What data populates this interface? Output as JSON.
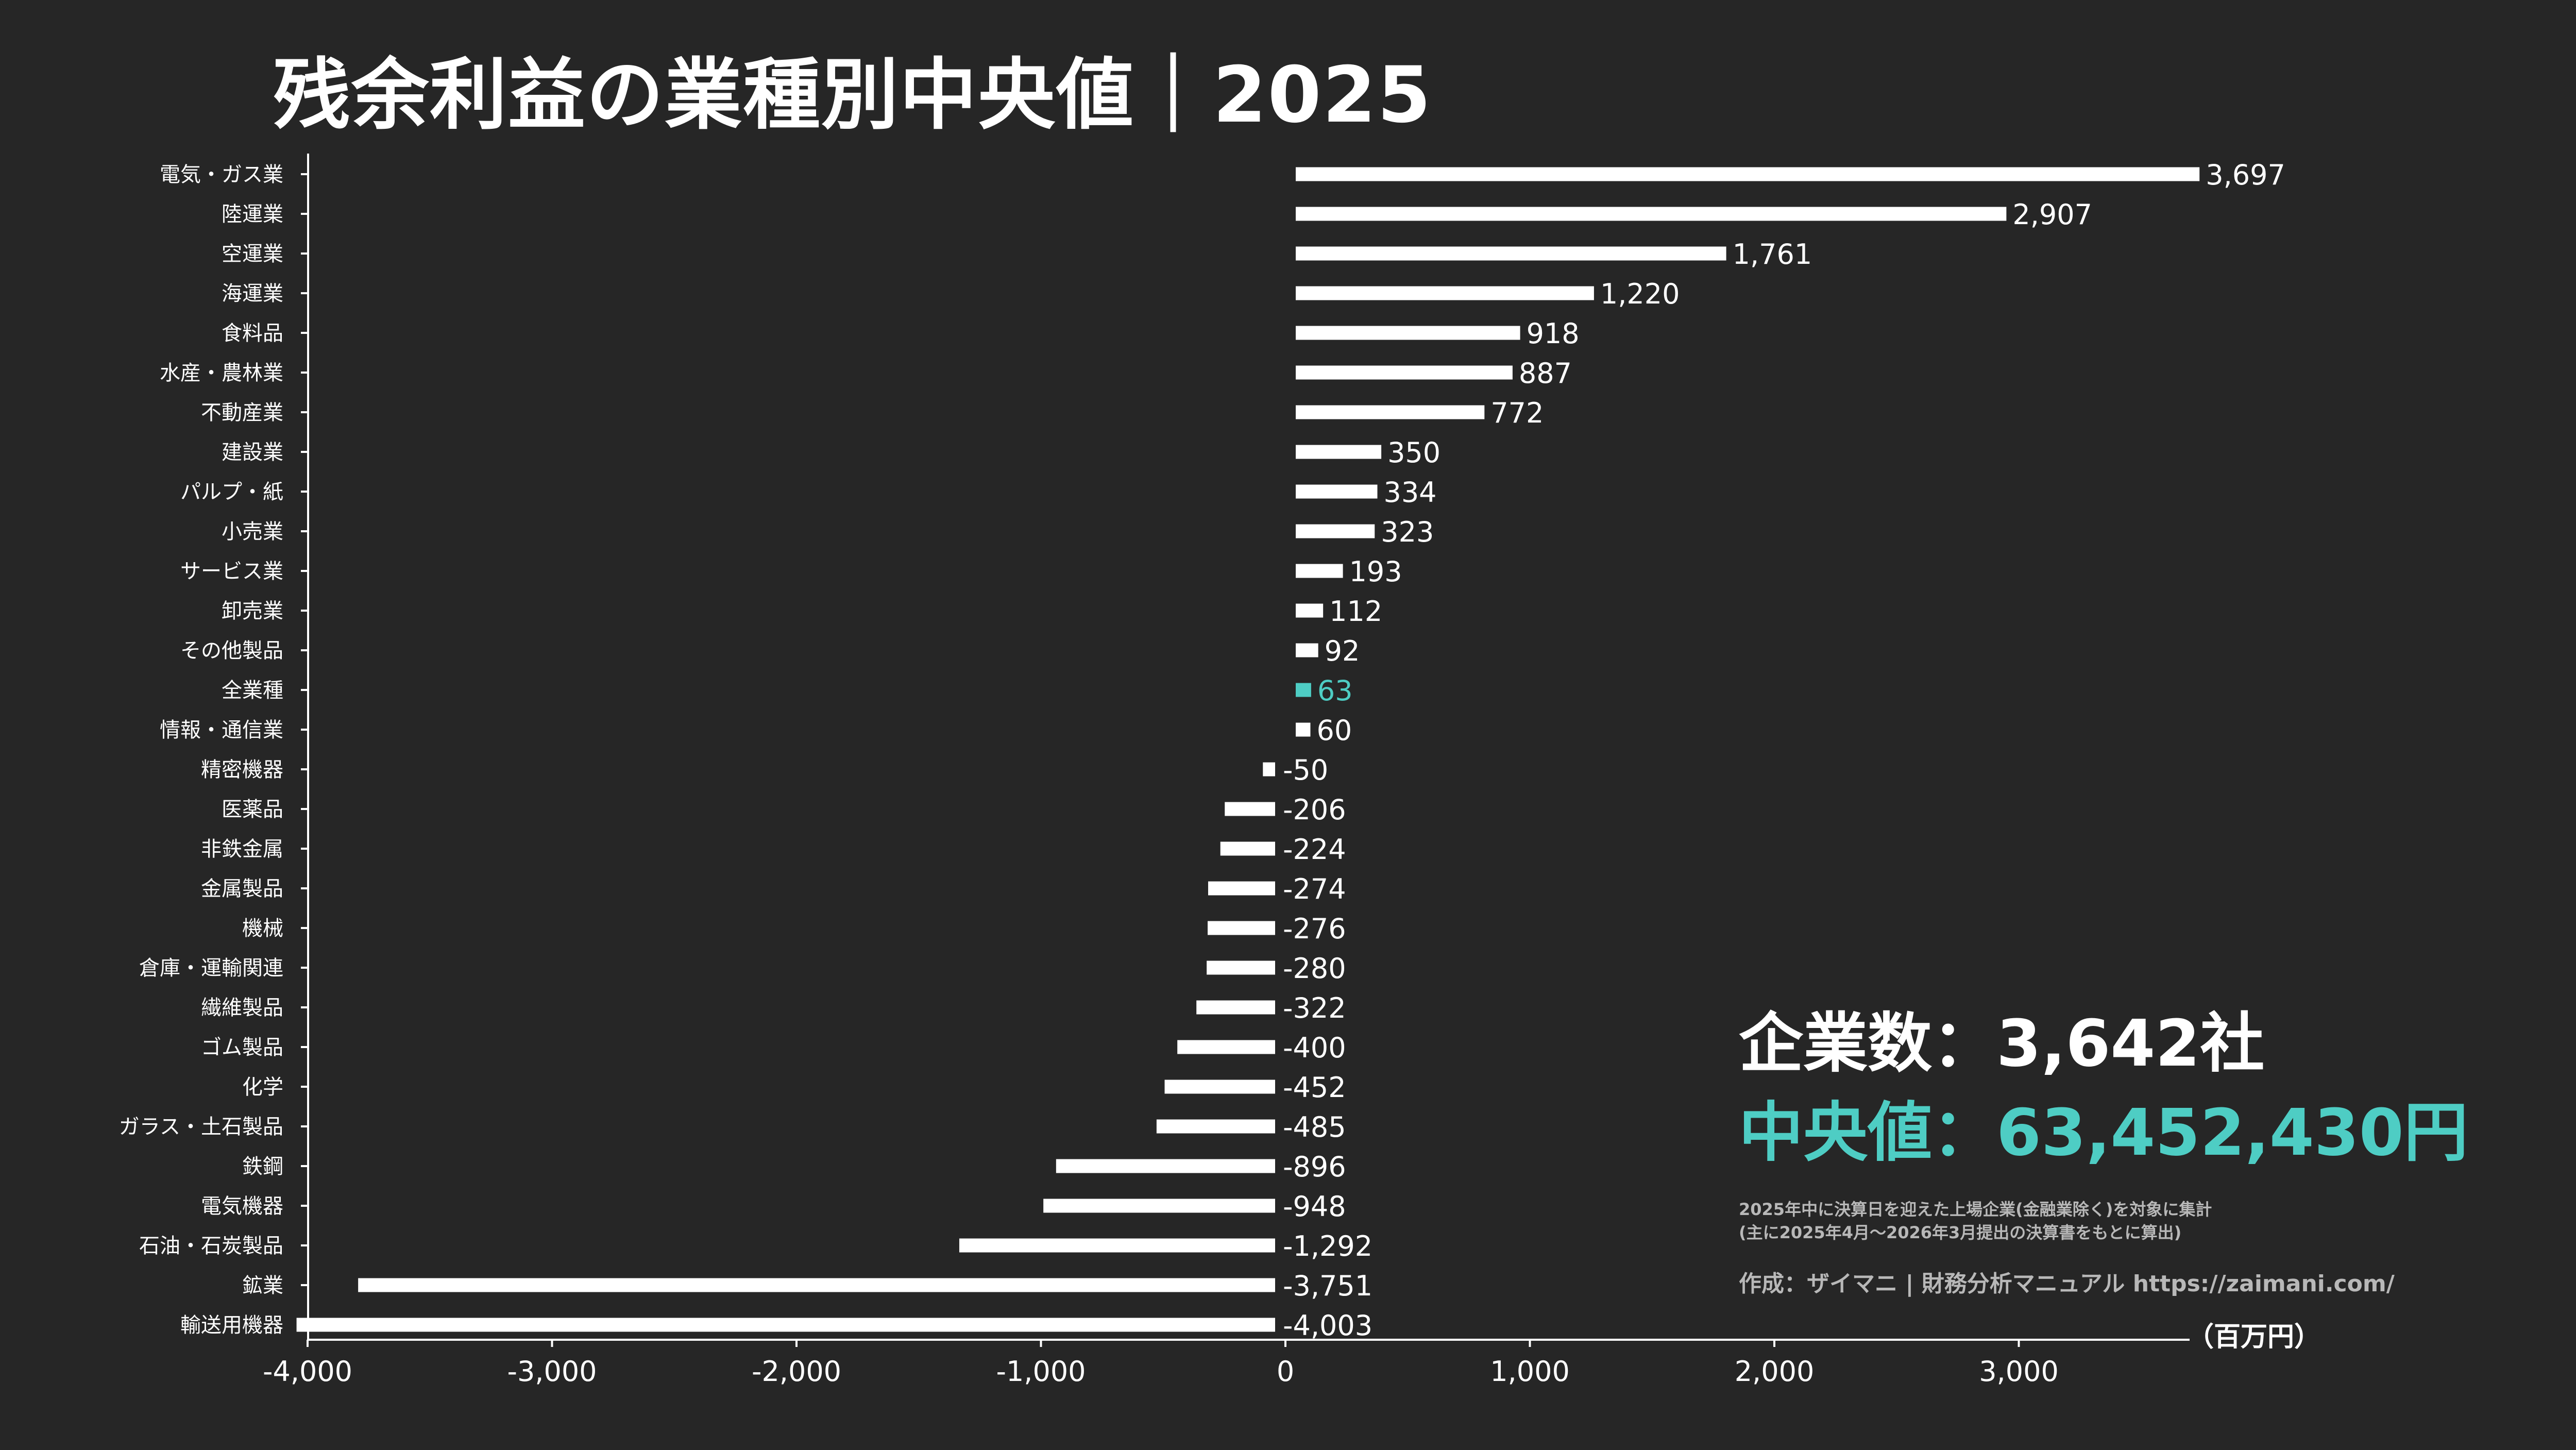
{
  "title": "残余利益の業種別中央値｜2025",
  "stats": {
    "company_count": "企業数：3,642社",
    "median": "中央値：63,452,430円",
    "note_line1": "2025年中に決算日を迎えた上場企業(金融業除く)を対象に集計",
    "note_line2": "(主に2025年4月～2026年3月提出の決算書をもとに算出)",
    "credit": "作成：ザイマニ | 財務分析マニュアル https://zaimani.com/"
  },
  "colors": {
    "background": "#262626",
    "bar": "#ffffff",
    "highlight": "#4ecdc4"
  },
  "chart_data": {
    "type": "bar",
    "orientation": "horizontal",
    "title": "残余利益の業種別中央値｜2025",
    "unit_label": "（百万円）",
    "xlim": [
      -4000,
      3700
    ],
    "xticks": [
      -4000,
      -3000,
      -2000,
      -1000,
      0,
      1000,
      2000,
      3000
    ],
    "xtick_labels": [
      "-4,000",
      "-3,000",
      "-2,000",
      "-1,000",
      "0",
      "1,000",
      "2,000",
      "3,000"
    ],
    "highlight_category": "全業種",
    "categories": [
      "電気・ガス業",
      "陸運業",
      "空運業",
      "海運業",
      "食料品",
      "水産・農林業",
      "不動産業",
      "建設業",
      "パルプ・紙",
      "小売業",
      "サービス業",
      "卸売業",
      "その他製品",
      "全業種",
      "情報・通信業",
      "精密機器",
      "医薬品",
      "非鉄金属",
      "金属製品",
      "機械",
      "倉庫・運輸関連",
      "繊維製品",
      "ゴム製品",
      "化学",
      "ガラス・土石製品",
      "鉄鋼",
      "電気機器",
      "石油・石炭製品",
      "鉱業",
      "輸送用機器"
    ],
    "values": [
      3697,
      2907,
      1761,
      1220,
      918,
      887,
      772,
      350,
      334,
      323,
      193,
      112,
      92,
      63,
      60,
      -50,
      -206,
      -224,
      -274,
      -276,
      -280,
      -322,
      -400,
      -452,
      -485,
      -896,
      -948,
      -1292,
      -3751,
      -4003
    ],
    "value_labels": [
      "3,697",
      "2,907",
      "1,761",
      "1,220",
      "918",
      "887",
      "772",
      "350",
      "334",
      "323",
      "193",
      "112",
      "92",
      "63",
      "60",
      "-50",
      "-206",
      "-224",
      "-274",
      "-276",
      "-280",
      "-322",
      "-400",
      "-452",
      "-485",
      "-896",
      "-948",
      "-1,292",
      "-3,751",
      "-4,003"
    ]
  }
}
